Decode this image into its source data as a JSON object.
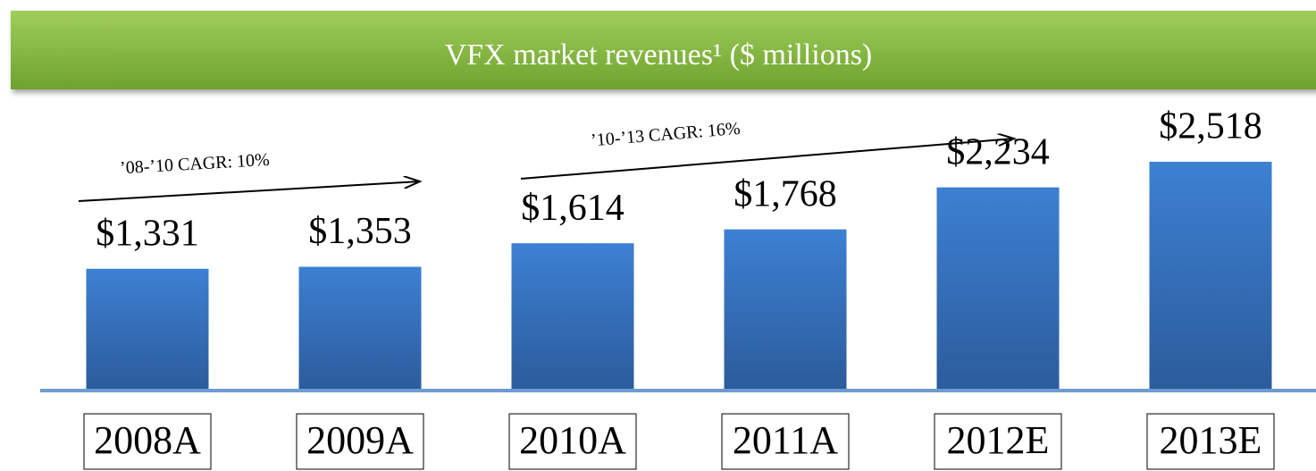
{
  "chart_data": {
    "type": "bar",
    "title": "VFX market revenues¹ ($ millions)",
    "categories": [
      "2008A",
      "2009A",
      "2010A",
      "2011A",
      "2012E",
      "2013E"
    ],
    "values": [
      1331,
      1353,
      1614,
      1768,
      2234,
      2518
    ],
    "value_labels": [
      "$1,331",
      "$1,353",
      "$1,614",
      "$1,768",
      "$2,234",
      "$2,518"
    ],
    "color": "#3a78c9",
    "annotations": [
      "’08-’10 CAGR: 10%",
      "’10-’13 CAGR: 16%"
    ]
  }
}
